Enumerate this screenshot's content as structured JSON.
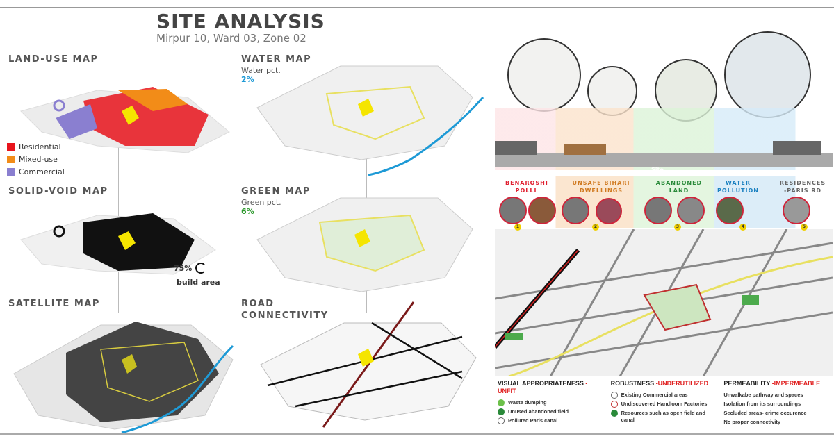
{
  "header": {
    "title": "SITE ANALYSIS",
    "subtitle": "Mirpur 10, Ward 03, Zone 02"
  },
  "maps": {
    "land_use": {
      "label": "LAND-USE MAP",
      "legend": [
        {
          "label": "Residential",
          "color": "#e8141c"
        },
        {
          "label": "Mixed-use",
          "color": "#f28c18"
        },
        {
          "label": "Commercial",
          "color": "#8a7fd0"
        }
      ]
    },
    "solid_void": {
      "label": "SOLID-VOID MAP",
      "stat": "75%",
      "stat_label": "build area"
    },
    "satellite": {
      "label": "SATELLITE MAP"
    },
    "water": {
      "label": "WATER MAP",
      "pct_label": "Water pct.",
      "pct": "2%",
      "color": "#1e9ad6"
    },
    "green": {
      "label": "GREEN MAP",
      "pct_label": "Green pct.",
      "pct": "6%",
      "color": "#2e9a2e"
    },
    "road": {
      "label": "ROAD",
      "label2": "CONNECTIVITY"
    }
  },
  "section": {
    "site_label": "Site"
  },
  "issues": [
    {
      "line1": "BENAROSHI",
      "line2": "POLLI",
      "num": "1",
      "color": "#e02030"
    },
    {
      "line1": "UNSAFE BIHARI",
      "line2": "DWELLINGS",
      "num": "2",
      "color": "#d07a20"
    },
    {
      "line1": "ABANDONED",
      "line2": "LAND",
      "num": "3",
      "color": "#2a8a3a"
    },
    {
      "line1": "WATER",
      "line2": "POLLUTION",
      "num": "4",
      "color": "#1a80c0"
    },
    {
      "line1": "RESIDENCES",
      "line2": "-PARIS RD",
      "num": "5",
      "color": "#666666"
    }
  ],
  "legend": {
    "visual": {
      "title": "VISUAL APPROPRIATENESS ",
      "status": "-UNFIT",
      "items": [
        "Waste dumping",
        "Unused abandoned field",
        "Polluted Paris canal"
      ]
    },
    "robustness": {
      "title": "ROBUSTNESS ",
      "status": "-UNDERUTILIZED",
      "items": [
        "Existing Commercial areas",
        "Undiscovered Handloom Factories",
        "Resources such as open field and canal"
      ]
    },
    "permeability": {
      "title": "PERMEABILITY ",
      "status": "-IMPERMEABLE",
      "items": [
        "Unwalkabe pathway and spaces",
        "Isolation from its surroundings",
        "Secluded areas- crime occurence",
        "No proper connectivity"
      ]
    }
  }
}
